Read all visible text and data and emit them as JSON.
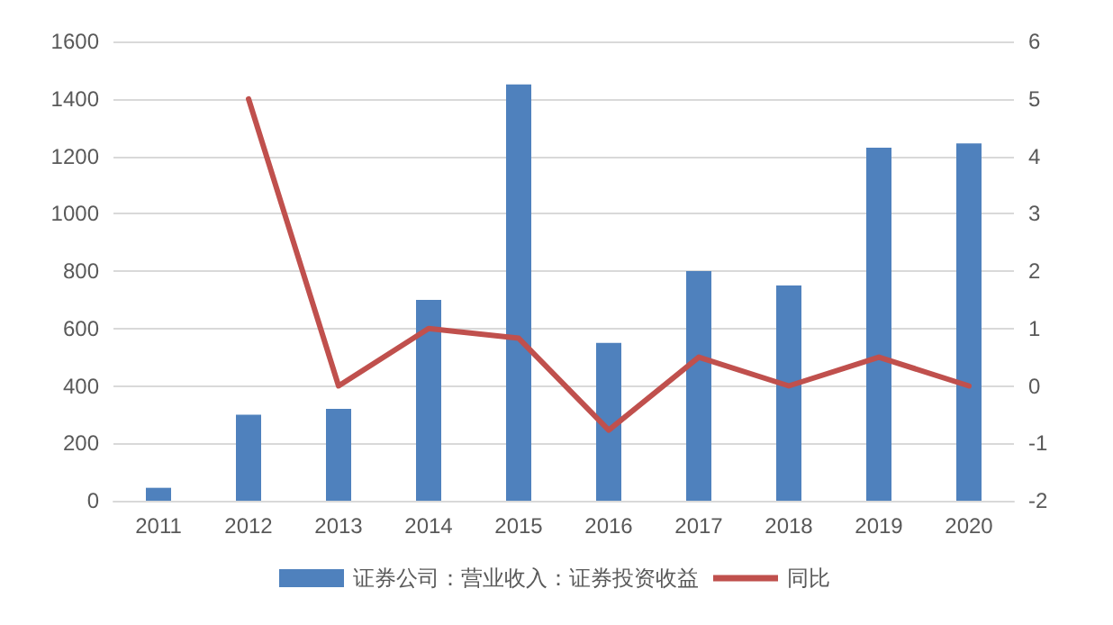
{
  "chart_data": {
    "type": "bar",
    "categories": [
      "2011",
      "2012",
      "2013",
      "2014",
      "2015",
      "2016",
      "2017",
      "2018",
      "2019",
      "2020"
    ],
    "series": [
      {
        "name": "证券公司：营业收入：证券投资收益",
        "color": "#4f81bd",
        "values": [
          45,
          300,
          320,
          700,
          1450,
          550,
          800,
          750,
          1230,
          1245
        ]
      },
      {
        "name": "同比",
        "type": "line",
        "axis": "y2",
        "color": "#c0504d",
        "values": [
          null,
          5,
          0,
          1,
          0.83,
          -0.77,
          0.5,
          0,
          0.5,
          0
        ]
      }
    ],
    "ylim": [
      0,
      1600
    ],
    "yticks": [
      0,
      200,
      400,
      600,
      800,
      1000,
      1200,
      1400,
      1600
    ],
    "y2lim": [
      -2,
      6
    ],
    "y2ticks": [
      -2,
      -1,
      0,
      1,
      2,
      3,
      4,
      5,
      6
    ],
    "grid": "y",
    "legend": "bottom",
    "marker": "none",
    "line_style": "solid"
  }
}
